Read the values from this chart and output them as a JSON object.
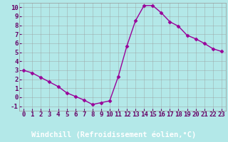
{
  "x": [
    0,
    1,
    2,
    3,
    4,
    5,
    6,
    7,
    8,
    9,
    10,
    11,
    12,
    13,
    14,
    15,
    16,
    17,
    18,
    19,
    20,
    21,
    22,
    23
  ],
  "y": [
    3.0,
    2.7,
    2.2,
    1.7,
    1.2,
    0.5,
    0.1,
    -0.3,
    -0.8,
    -0.6,
    -0.4,
    2.3,
    5.7,
    8.5,
    10.2,
    10.2,
    9.4,
    8.4,
    7.9,
    6.9,
    6.5,
    6.0,
    5.4,
    5.1
  ],
  "line_color": "#990099",
  "marker": "D",
  "marker_size": 2.5,
  "bg_color": "#b3e8e8",
  "grid_color": "#999999",
  "xlabel": "Windchill (Refroidissement éolien,°C)",
  "xlim": [
    -0.5,
    23.5
  ],
  "ylim": [
    -1.5,
    10.5
  ],
  "yticks": [
    -1,
    0,
    1,
    2,
    3,
    4,
    5,
    6,
    7,
    8,
    9,
    10
  ],
  "xticks": [
    0,
    1,
    2,
    3,
    4,
    5,
    6,
    7,
    8,
    9,
    10,
    11,
    12,
    13,
    14,
    15,
    16,
    17,
    18,
    19,
    20,
    21,
    22,
    23
  ],
  "tick_label_color": "#660066",
  "xlabel_color": "#660066",
  "bottom_bar_color": "#660066",
  "font_size": 6.5,
  "xlabel_fontsize": 7.5,
  "line_width": 1.0
}
